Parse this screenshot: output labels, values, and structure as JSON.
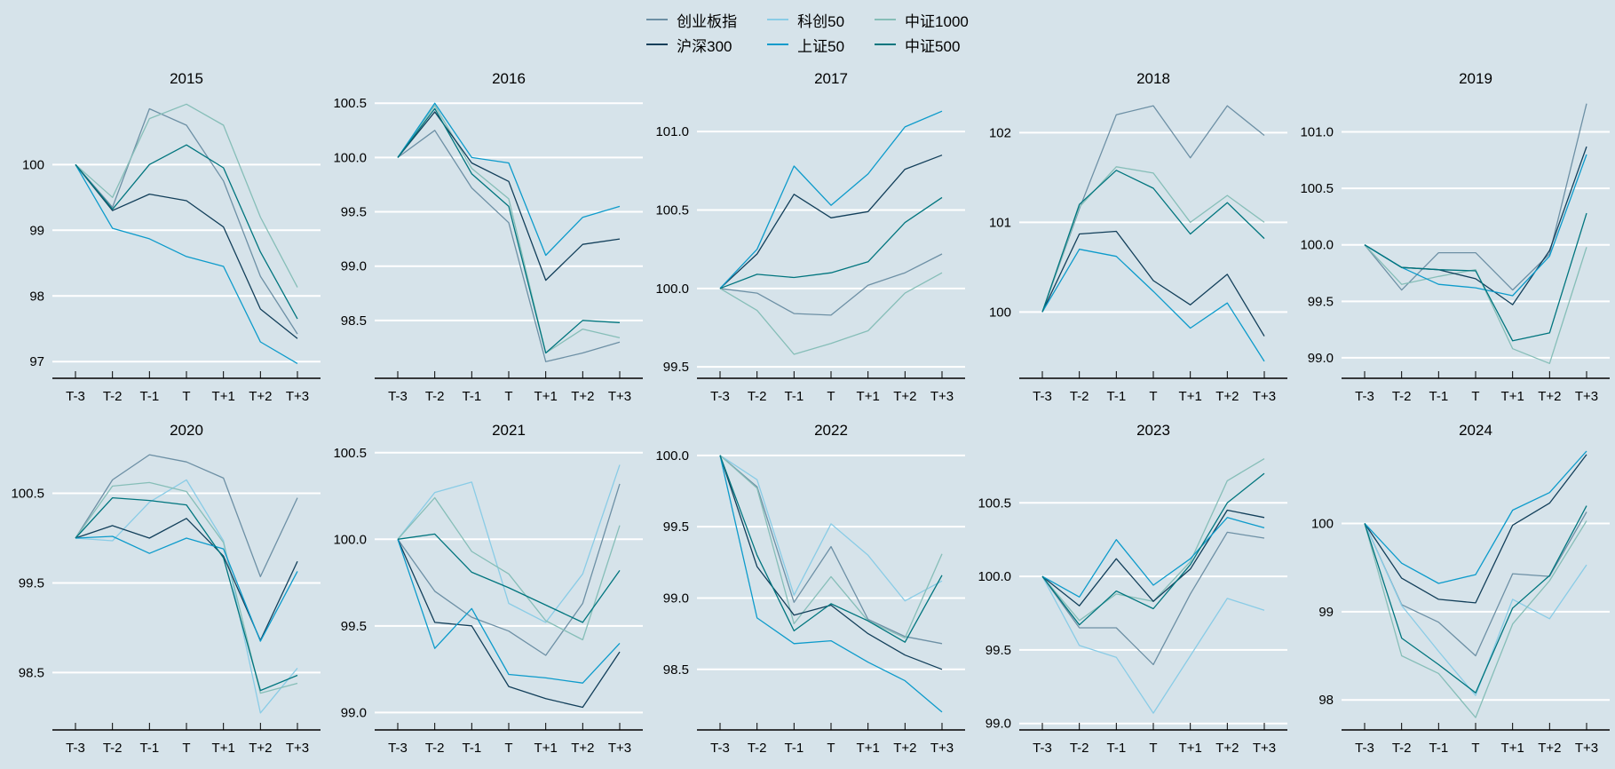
{
  "legend": {
    "rows": [
      [
        {
          "label": "创业板指",
          "color": "#6d90a5"
        },
        {
          "label": "科创50",
          "color": "#8acce6"
        },
        {
          "label": "中证1000",
          "color": "#86beb8"
        }
      ],
      [
        {
          "label": "沪深300",
          "color": "#123f5a"
        },
        {
          "label": "上证50",
          "color": "#0d9bcb"
        },
        {
          "label": "中证500",
          "color": "#00757e"
        }
      ]
    ]
  },
  "palette": {
    "创业板指": "#6d90a5",
    "科创50": "#8acce6",
    "中证1000": "#86beb8",
    "沪深300": "#123f5a",
    "上证50": "#0d9bcb",
    "中证500": "#00757e",
    "background": "#d6e3ea",
    "gridline": "#ffffff",
    "axis": "#000000",
    "text": "#000000"
  },
  "x_categories": [
    "T-3",
    "T-2",
    "T-1",
    "T",
    "T+1",
    "T+2",
    "T+3"
  ],
  "chart_data": [
    {
      "type": "line",
      "title": "2015",
      "ylim": [
        96.8,
        101.1
      ],
      "yticks": [
        {
          "value": 97,
          "label": "97"
        },
        {
          "value": 98,
          "label": "98"
        },
        {
          "value": 99,
          "label": "99"
        },
        {
          "value": 100,
          "label": "100"
        }
      ],
      "series": [
        {
          "name": "创业板指",
          "values": [
            100,
            99.35,
            100.85,
            100.6,
            99.75,
            98.3,
            97.42
          ]
        },
        {
          "name": "中证1000",
          "values": [
            100,
            99.5,
            100.7,
            100.92,
            100.6,
            99.2,
            98.13
          ]
        },
        {
          "name": "沪深300",
          "values": [
            100,
            99.3,
            99.55,
            99.45,
            99.05,
            97.8,
            97.35
          ]
        },
        {
          "name": "上证50",
          "values": [
            100,
            99.03,
            98.87,
            98.6,
            98.45,
            97.3,
            96.97
          ]
        },
        {
          "name": "中证500",
          "values": [
            100,
            99.32,
            100.0,
            100.3,
            99.95,
            98.67,
            97.65
          ]
        }
      ]
    },
    {
      "type": "line",
      "title": "2016",
      "ylim": [
        98.0,
        100.6
      ],
      "yticks": [
        {
          "value": 98.5,
          "label": "98.5"
        },
        {
          "value": 99.0,
          "label": "99.0"
        },
        {
          "value": 99.5,
          "label": "99.5"
        },
        {
          "value": 100.0,
          "label": "100.0"
        },
        {
          "value": 100.5,
          "label": "100.5"
        }
      ],
      "series": [
        {
          "name": "创业板指",
          "values": [
            100,
            100.25,
            99.72,
            99.4,
            98.12,
            98.2,
            98.3
          ]
        },
        {
          "name": "中证1000",
          "values": [
            100,
            100.48,
            99.9,
            99.62,
            98.2,
            98.42,
            98.34
          ]
        },
        {
          "name": "沪深300",
          "values": [
            100,
            100.42,
            99.95,
            99.78,
            98.87,
            99.2,
            99.25
          ]
        },
        {
          "name": "上证50",
          "values": [
            100,
            100.5,
            100.0,
            99.95,
            99.1,
            99.45,
            99.55
          ]
        },
        {
          "name": "中证500",
          "values": [
            100,
            100.45,
            99.85,
            99.55,
            98.2,
            98.5,
            98.48
          ]
        }
      ]
    },
    {
      "type": "line",
      "title": "2017",
      "ylim": [
        99.45,
        101.25
      ],
      "yticks": [
        {
          "value": 99.5,
          "label": "99.5"
        },
        {
          "value": 100.0,
          "label": "100.0"
        },
        {
          "value": 100.5,
          "label": "100.5"
        },
        {
          "value": 101.0,
          "label": "101.0"
        }
      ],
      "series": [
        {
          "name": "创业板指",
          "values": [
            100,
            99.97,
            99.84,
            99.83,
            100.02,
            100.1,
            100.22
          ]
        },
        {
          "name": "中证1000",
          "values": [
            100,
            99.86,
            99.58,
            99.65,
            99.73,
            99.97,
            100.1
          ]
        },
        {
          "name": "沪深300",
          "values": [
            100,
            100.22,
            100.6,
            100.45,
            100.49,
            100.76,
            100.85
          ]
        },
        {
          "name": "上证50",
          "values": [
            100,
            100.25,
            100.78,
            100.53,
            100.73,
            101.03,
            101.13
          ]
        },
        {
          "name": "中证500",
          "values": [
            100,
            100.09,
            100.07,
            100.1,
            100.17,
            100.42,
            100.58
          ]
        }
      ]
    },
    {
      "type": "line",
      "title": "2018",
      "ylim": [
        99.3,
        102.45
      ],
      "yticks": [
        {
          "value": 100,
          "label": "100"
        },
        {
          "value": 101,
          "label": "101"
        },
        {
          "value": 102,
          "label": "102"
        }
      ],
      "series": [
        {
          "name": "创业板指",
          "values": [
            100,
            101.15,
            102.2,
            102.3,
            101.72,
            102.3,
            101.97
          ]
        },
        {
          "name": "中证1000",
          "values": [
            100,
            101.17,
            101.62,
            101.55,
            101.0,
            101.3,
            101.0
          ]
        },
        {
          "name": "沪深300",
          "values": [
            100,
            100.87,
            100.9,
            100.35,
            100.08,
            100.42,
            99.73
          ]
        },
        {
          "name": "上证50",
          "values": [
            100,
            100.7,
            100.62,
            100.23,
            99.82,
            100.1,
            99.45
          ]
        },
        {
          "name": "中证500",
          "values": [
            100,
            101.2,
            101.58,
            101.38,
            100.87,
            101.22,
            100.82
          ]
        }
      ]
    },
    {
      "type": "line",
      "title": "2019",
      "ylim": [
        98.85,
        101.35
      ],
      "yticks": [
        {
          "value": 99.0,
          "label": "99.0"
        },
        {
          "value": 99.5,
          "label": "99.5"
        },
        {
          "value": 100.0,
          "label": "100.0"
        },
        {
          "value": 100.5,
          "label": "100.5"
        },
        {
          "value": 101.0,
          "label": "101.0"
        }
      ],
      "series": [
        {
          "name": "创业板指",
          "values": [
            100,
            99.6,
            99.93,
            99.93,
            99.6,
            99.92,
            101.25
          ]
        },
        {
          "name": "中证1000",
          "values": [
            100,
            99.65,
            99.72,
            99.78,
            99.08,
            98.95,
            99.98
          ]
        },
        {
          "name": "沪深300",
          "values": [
            100,
            99.8,
            99.78,
            99.7,
            99.47,
            99.95,
            100.87
          ]
        },
        {
          "name": "上证50",
          "values": [
            100,
            99.8,
            99.65,
            99.62,
            99.55,
            99.9,
            100.8
          ]
        },
        {
          "name": "中证500",
          "values": [
            100,
            99.8,
            99.78,
            99.77,
            99.15,
            99.22,
            100.28
          ]
        }
      ]
    },
    {
      "type": "line",
      "title": "2020",
      "ylim": [
        97.9,
        101.05
      ],
      "yticks": [
        {
          "value": 98.5,
          "label": "98.5"
        },
        {
          "value": 99.5,
          "label": "99.5"
        },
        {
          "value": 100.5,
          "label": "100.5"
        }
      ],
      "series": [
        {
          "name": "创业板指",
          "values": [
            100,
            100.65,
            100.93,
            100.85,
            100.67,
            99.57,
            100.45
          ]
        },
        {
          "name": "科创50",
          "values": [
            100,
            99.97,
            100.4,
            100.65,
            99.97,
            98.05,
            98.55
          ]
        },
        {
          "name": "中证1000",
          "values": [
            100,
            100.58,
            100.62,
            100.52,
            99.95,
            98.27,
            98.38
          ]
        },
        {
          "name": "沪深300",
          "values": [
            100,
            100.14,
            100.0,
            100.22,
            99.8,
            98.86,
            99.74
          ]
        },
        {
          "name": "上证50",
          "values": [
            100,
            100.02,
            99.83,
            100.0,
            99.88,
            98.85,
            99.63
          ]
        },
        {
          "name": "中证500",
          "values": [
            100,
            100.45,
            100.42,
            100.37,
            99.78,
            98.3,
            98.47
          ]
        }
      ]
    },
    {
      "type": "line",
      "title": "2021",
      "ylim": [
        98.92,
        100.55
      ],
      "yticks": [
        {
          "value": 99.0,
          "label": "99.0"
        },
        {
          "value": 99.5,
          "label": "99.5"
        },
        {
          "value": 100.0,
          "label": "100.0"
        },
        {
          "value": 100.5,
          "label": "100.5"
        }
      ],
      "series": [
        {
          "name": "创业板指",
          "values": [
            100,
            99.7,
            99.55,
            99.47,
            99.33,
            99.63,
            100.32
          ]
        },
        {
          "name": "科创50",
          "values": [
            100,
            100.27,
            100.33,
            99.63,
            99.52,
            99.8,
            100.43
          ]
        },
        {
          "name": "中证1000",
          "values": [
            100,
            100.24,
            99.93,
            99.8,
            99.53,
            99.42,
            100.08
          ]
        },
        {
          "name": "沪深300",
          "values": [
            100,
            99.52,
            99.5,
            99.15,
            99.08,
            99.03,
            99.35
          ]
        },
        {
          "name": "上证50",
          "values": [
            100,
            99.37,
            99.6,
            99.22,
            99.2,
            99.17,
            99.4
          ]
        },
        {
          "name": "中证500",
          "values": [
            100,
            100.03,
            99.81,
            99.72,
            99.62,
            99.52,
            99.82
          ]
        }
      ]
    },
    {
      "type": "line",
      "title": "2022",
      "ylim": [
        98.1,
        100.08
      ],
      "yticks": [
        {
          "value": 98.5,
          "label": "98.5"
        },
        {
          "value": 99.0,
          "label": "99.0"
        },
        {
          "value": 99.5,
          "label": "99.5"
        },
        {
          "value": 100.0,
          "label": "100.0"
        }
      ],
      "series": [
        {
          "name": "创业板指",
          "values": [
            100,
            99.78,
            98.97,
            99.36,
            98.85,
            98.73,
            98.68
          ]
        },
        {
          "name": "科创50",
          "values": [
            100,
            99.83,
            99.02,
            99.52,
            99.3,
            98.98,
            99.12
          ]
        },
        {
          "name": "中证1000",
          "values": [
            100,
            99.77,
            98.82,
            99.15,
            98.84,
            98.72,
            99.31
          ]
        },
        {
          "name": "沪深300",
          "values": [
            100,
            99.22,
            98.88,
            98.95,
            98.75,
            98.6,
            98.5
          ]
        },
        {
          "name": "上证50",
          "values": [
            100,
            98.86,
            98.68,
            98.7,
            98.55,
            98.42,
            98.2
          ]
        },
        {
          "name": "中证500",
          "values": [
            100,
            99.3,
            98.77,
            98.96,
            98.84,
            98.69,
            99.16
          ]
        }
      ]
    },
    {
      "type": "line",
      "title": "2023",
      "ylim": [
        98.98,
        100.9
      ],
      "yticks": [
        {
          "value": 99.0,
          "label": "99.0"
        },
        {
          "value": 99.5,
          "label": "99.5"
        },
        {
          "value": 100.0,
          "label": "100.0"
        },
        {
          "value": 100.5,
          "label": "100.5"
        }
      ],
      "series": [
        {
          "name": "创业板指",
          "values": [
            100,
            99.65,
            99.65,
            99.4,
            99.88,
            100.3,
            100.26
          ]
        },
        {
          "name": "科创50",
          "values": [
            100,
            99.53,
            99.45,
            99.07,
            99.46,
            99.85,
            99.77
          ]
        },
        {
          "name": "中证1000",
          "values": [
            100,
            99.7,
            99.88,
            99.83,
            100.1,
            100.65,
            100.8
          ]
        },
        {
          "name": "沪深300",
          "values": [
            100,
            99.8,
            100.12,
            99.83,
            100.05,
            100.45,
            100.4
          ]
        },
        {
          "name": "上证50",
          "values": [
            100,
            99.86,
            100.25,
            99.94,
            100.12,
            100.4,
            100.33
          ]
        },
        {
          "name": "中证500",
          "values": [
            100,
            99.67,
            99.9,
            99.78,
            100.08,
            100.5,
            100.7
          ]
        }
      ]
    },
    {
      "type": "line",
      "title": "2024",
      "ylim": [
        97.7,
        100.9
      ],
      "yticks": [
        {
          "value": 98,
          "label": "98"
        },
        {
          "value": 99,
          "label": "99"
        },
        {
          "value": 100,
          "label": "100"
        }
      ],
      "series": [
        {
          "name": "创业板指",
          "values": [
            100,
            99.08,
            98.88,
            98.5,
            99.43,
            99.4,
            100.13
          ]
        },
        {
          "name": "科创50",
          "values": [
            100,
            99.07,
            98.55,
            98.05,
            99.14,
            98.92,
            99.53
          ]
        },
        {
          "name": "中证1000",
          "values": [
            100,
            98.5,
            98.3,
            97.8,
            98.86,
            99.35,
            100.03
          ]
        },
        {
          "name": "沪深300",
          "values": [
            100,
            99.38,
            99.14,
            99.1,
            99.98,
            100.23,
            100.78
          ]
        },
        {
          "name": "上证50",
          "values": [
            100,
            99.55,
            99.32,
            99.42,
            100.15,
            100.35,
            100.82
          ]
        },
        {
          "name": "中证500",
          "values": [
            100,
            98.7,
            98.4,
            98.08,
            99.04,
            99.41,
            100.2
          ]
        }
      ]
    }
  ]
}
